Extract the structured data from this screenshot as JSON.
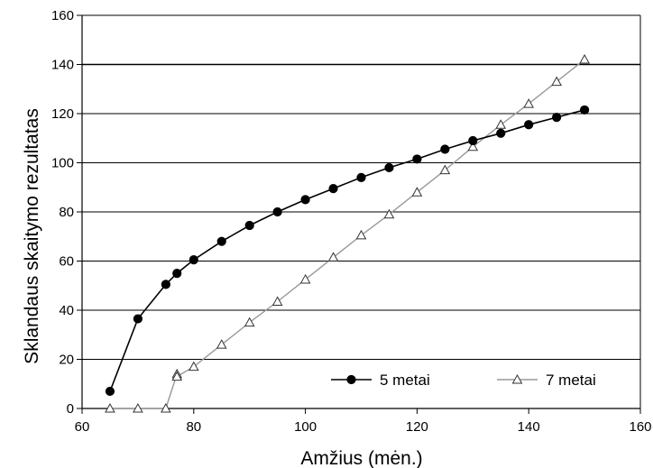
{
  "chart_data": {
    "type": "line",
    "title": "",
    "xlabel": "Amžius (mėn.)",
    "ylabel": "Sklandaus skaitymo rezultatas",
    "xlim": [
      60,
      160
    ],
    "ylim": [
      0,
      160
    ],
    "x_ticks": [
      60,
      80,
      100,
      120,
      140,
      160
    ],
    "y_ticks": [
      0,
      20,
      40,
      60,
      80,
      100,
      120,
      140,
      160
    ],
    "grid": "horizontal",
    "legend_position": "bottom-right",
    "series": [
      {
        "name": "5 metai",
        "color": "#000000",
        "marker": "circle",
        "points": [
          [
            65,
            7
          ],
          [
            70,
            36.5
          ],
          [
            75,
            50.5
          ],
          [
            77,
            55
          ],
          [
            80,
            60.5
          ],
          [
            85,
            68
          ],
          [
            90,
            74.5
          ],
          [
            95,
            80
          ],
          [
            100,
            85
          ],
          [
            105,
            89.5
          ],
          [
            110,
            94
          ],
          [
            115,
            98
          ],
          [
            120,
            101.5
          ],
          [
            125,
            105.5
          ],
          [
            130,
            109
          ],
          [
            135,
            112
          ],
          [
            140,
            115.5
          ],
          [
            145,
            118.5
          ],
          [
            150,
            121.5
          ]
        ]
      },
      {
        "name": "7 metai",
        "color": "#999999",
        "marker": "triangle",
        "points": [
          [
            65,
            0
          ],
          [
            70,
            0
          ],
          [
            75,
            0
          ],
          [
            77,
            14
          ],
          [
            77,
            13
          ],
          [
            80,
            17
          ],
          [
            85,
            26
          ],
          [
            90,
            35
          ],
          [
            95,
            43.5
          ],
          [
            100,
            52.5
          ],
          [
            105,
            61.5
          ],
          [
            110,
            70.5
          ],
          [
            115,
            79
          ],
          [
            120,
            88
          ],
          [
            125,
            97
          ],
          [
            130,
            106.5
          ],
          [
            135,
            115.5
          ],
          [
            140,
            124
          ],
          [
            145,
            133
          ],
          [
            150,
            142
          ]
        ]
      }
    ]
  }
}
